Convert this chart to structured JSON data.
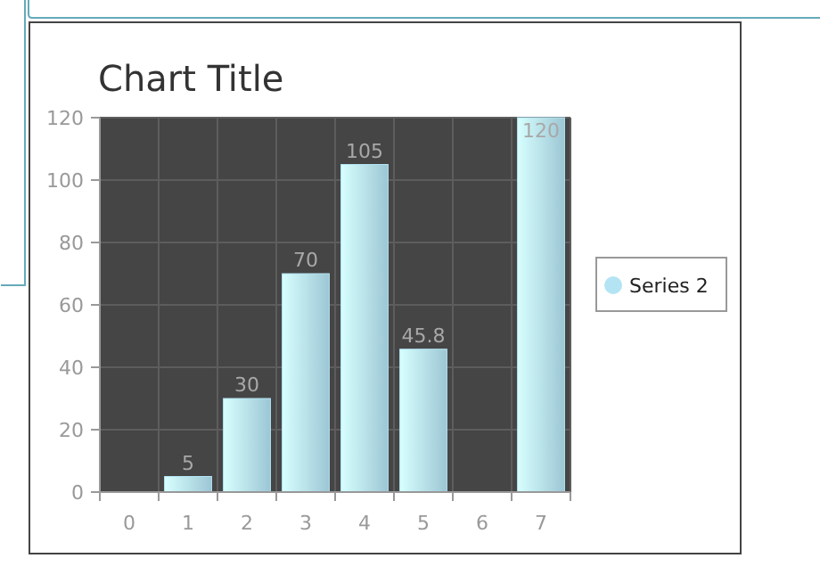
{
  "chart_data": {
    "type": "bar",
    "title": "Chart Title",
    "categories": [
      "0",
      "1",
      "2",
      "3",
      "4",
      "5",
      "6",
      "7"
    ],
    "series": [
      {
        "name": "Series 2",
        "color": "#b4e4f4",
        "values": [
          null,
          5,
          30,
          70,
          105,
          45.8,
          null,
          120
        ]
      }
    ],
    "ylim": [
      0,
      120
    ],
    "yticks": [
      0,
      20,
      40,
      60,
      80,
      100,
      120
    ],
    "grid": true,
    "legend": "right",
    "data_labels": true
  }
}
